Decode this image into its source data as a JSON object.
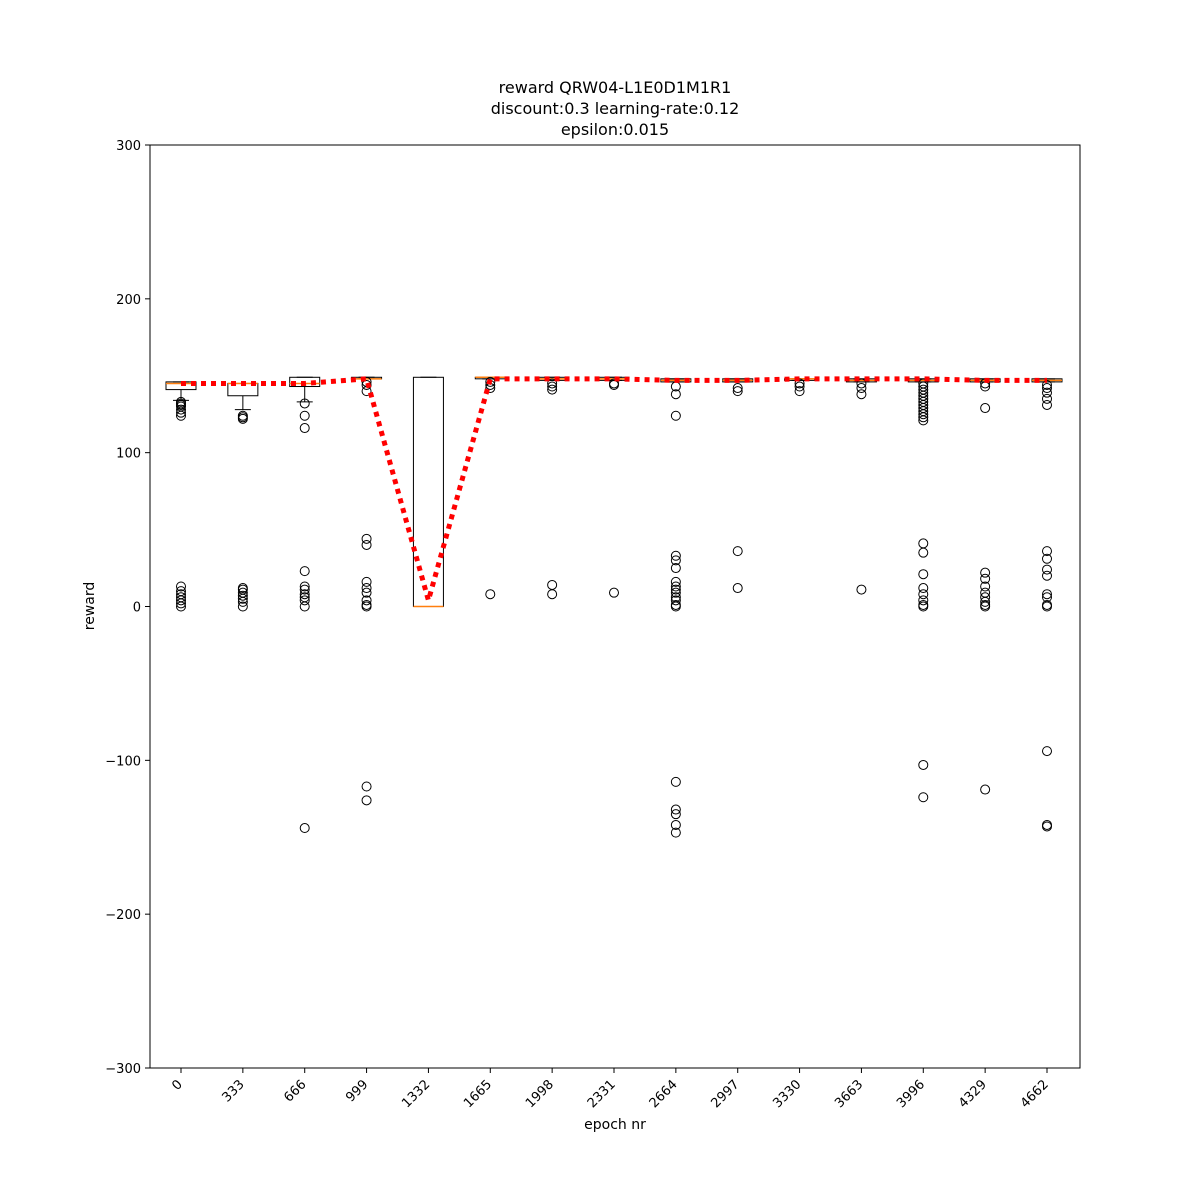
{
  "chart_data": {
    "type": "box",
    "title_lines": [
      "reward QRW04-L1E0D1M1R1",
      "discount:0.3 learning-rate:0.12",
      "epsilon:0.015"
    ],
    "xlabel": "epoch nr",
    "ylabel": "reward",
    "ylim": [
      -300,
      300
    ],
    "yticks": [
      -300,
      -200,
      -100,
      0,
      100,
      200,
      300
    ],
    "ytick_labels": [
      "−300",
      "−200",
      "−100",
      "0",
      "100",
      "200",
      "300"
    ],
    "categories": [
      "0",
      "333",
      "666",
      "999",
      "1332",
      "1665",
      "1998",
      "2331",
      "2664",
      "2997",
      "3330",
      "3663",
      "3996",
      "4329",
      "4662"
    ],
    "boxes": [
      {
        "q1": 141,
        "median": 145,
        "q3": 146,
        "whisker_low": 134,
        "whisker_high": 146,
        "fliers": [
          124,
          126,
          128,
          130,
          131,
          132,
          133,
          0,
          2,
          4,
          6,
          8,
          10,
          13
        ]
      },
      {
        "q1": 137,
        "median": 145,
        "q3": 145,
        "whisker_low": 128,
        "whisker_high": 145,
        "fliers": [
          122,
          123,
          124,
          0,
          3,
          5,
          7,
          9,
          11,
          12
        ]
      },
      {
        "q1": 143,
        "median": 145,
        "q3": 149,
        "whisker_low": 133,
        "whisker_high": 149,
        "fliers": [
          116,
          124,
          132,
          23,
          13,
          11,
          8,
          6,
          4,
          0,
          -144
        ]
      },
      {
        "q1": 148,
        "median": 148,
        "q3": 149,
        "whisker_low": 148,
        "whisker_high": 149,
        "fliers": [
          146,
          144,
          140,
          44,
          40,
          16,
          12,
          9,
          4,
          1,
          0,
          -117,
          -126
        ]
      },
      {
        "q1": 0,
        "median": 0,
        "q3": 149,
        "whisker_low": 0,
        "whisker_high": 149,
        "fliers": []
      },
      {
        "q1": 148,
        "median": 149,
        "q3": 149,
        "whisker_low": 148,
        "whisker_high": 149,
        "fliers": [
          146,
          144,
          142,
          8
        ]
      },
      {
        "q1": 147,
        "median": 148,
        "q3": 149,
        "whisker_low": 147,
        "whisker_high": 149,
        "fliers": [
          145,
          143,
          141,
          14,
          8
        ]
      },
      {
        "q1": 147,
        "median": 148,
        "q3": 149,
        "whisker_low": 147,
        "whisker_high": 149,
        "fliers": [
          145,
          144,
          9
        ]
      },
      {
        "q1": 146,
        "median": 147,
        "q3": 148,
        "whisker_low": 146,
        "whisker_high": 148,
        "fliers": [
          143,
          138,
          124,
          33,
          30,
          25,
          16,
          13,
          11,
          9,
          6,
          4,
          1,
          0,
          -114,
          -132,
          -135,
          -142,
          -147
        ]
      },
      {
        "q1": 146,
        "median": 147,
        "q3": 148,
        "whisker_low": 146,
        "whisker_high": 148,
        "fliers": [
          142,
          140,
          36,
          12
        ]
      },
      {
        "q1": 147,
        "median": 148,
        "q3": 148,
        "whisker_low": 147,
        "whisker_high": 148,
        "fliers": [
          145,
          143,
          140
        ]
      },
      {
        "q1": 146,
        "median": 147,
        "q3": 148,
        "whisker_low": 146,
        "whisker_high": 148,
        "fliers": [
          145,
          142,
          138,
          11
        ]
      },
      {
        "q1": 146,
        "median": 147,
        "q3": 148,
        "whisker_low": 146,
        "whisker_high": 148,
        "fliers": [
          145,
          143,
          141,
          139,
          137,
          135,
          133,
          131,
          129,
          127,
          125,
          123,
          121,
          41,
          35,
          21,
          12,
          8,
          4,
          1,
          0,
          -103,
          -124
        ]
      },
      {
        "q1": 146,
        "median": 147,
        "q3": 148,
        "whisker_low": 146,
        "whisker_high": 148,
        "fliers": [
          145,
          143,
          129,
          22,
          18,
          13,
          9,
          6,
          3,
          1,
          0,
          -119
        ]
      },
      {
        "q1": 146,
        "median": 147,
        "q3": 148,
        "whisker_low": 146,
        "whisker_high": 148,
        "fliers": [
          144,
          142,
          139,
          135,
          131,
          36,
          31,
          24,
          20,
          8,
          6,
          1,
          0,
          -94,
          -142,
          -143
        ]
      }
    ],
    "mean_line": [
      145,
      145,
      145,
      148,
      4,
      148,
      148,
      148,
      147,
      147,
      148,
      148,
      148,
      147,
      147
    ],
    "colors": {
      "median": "#ff7f0e",
      "mean_line": "#ff0000",
      "box": "#000000"
    }
  }
}
